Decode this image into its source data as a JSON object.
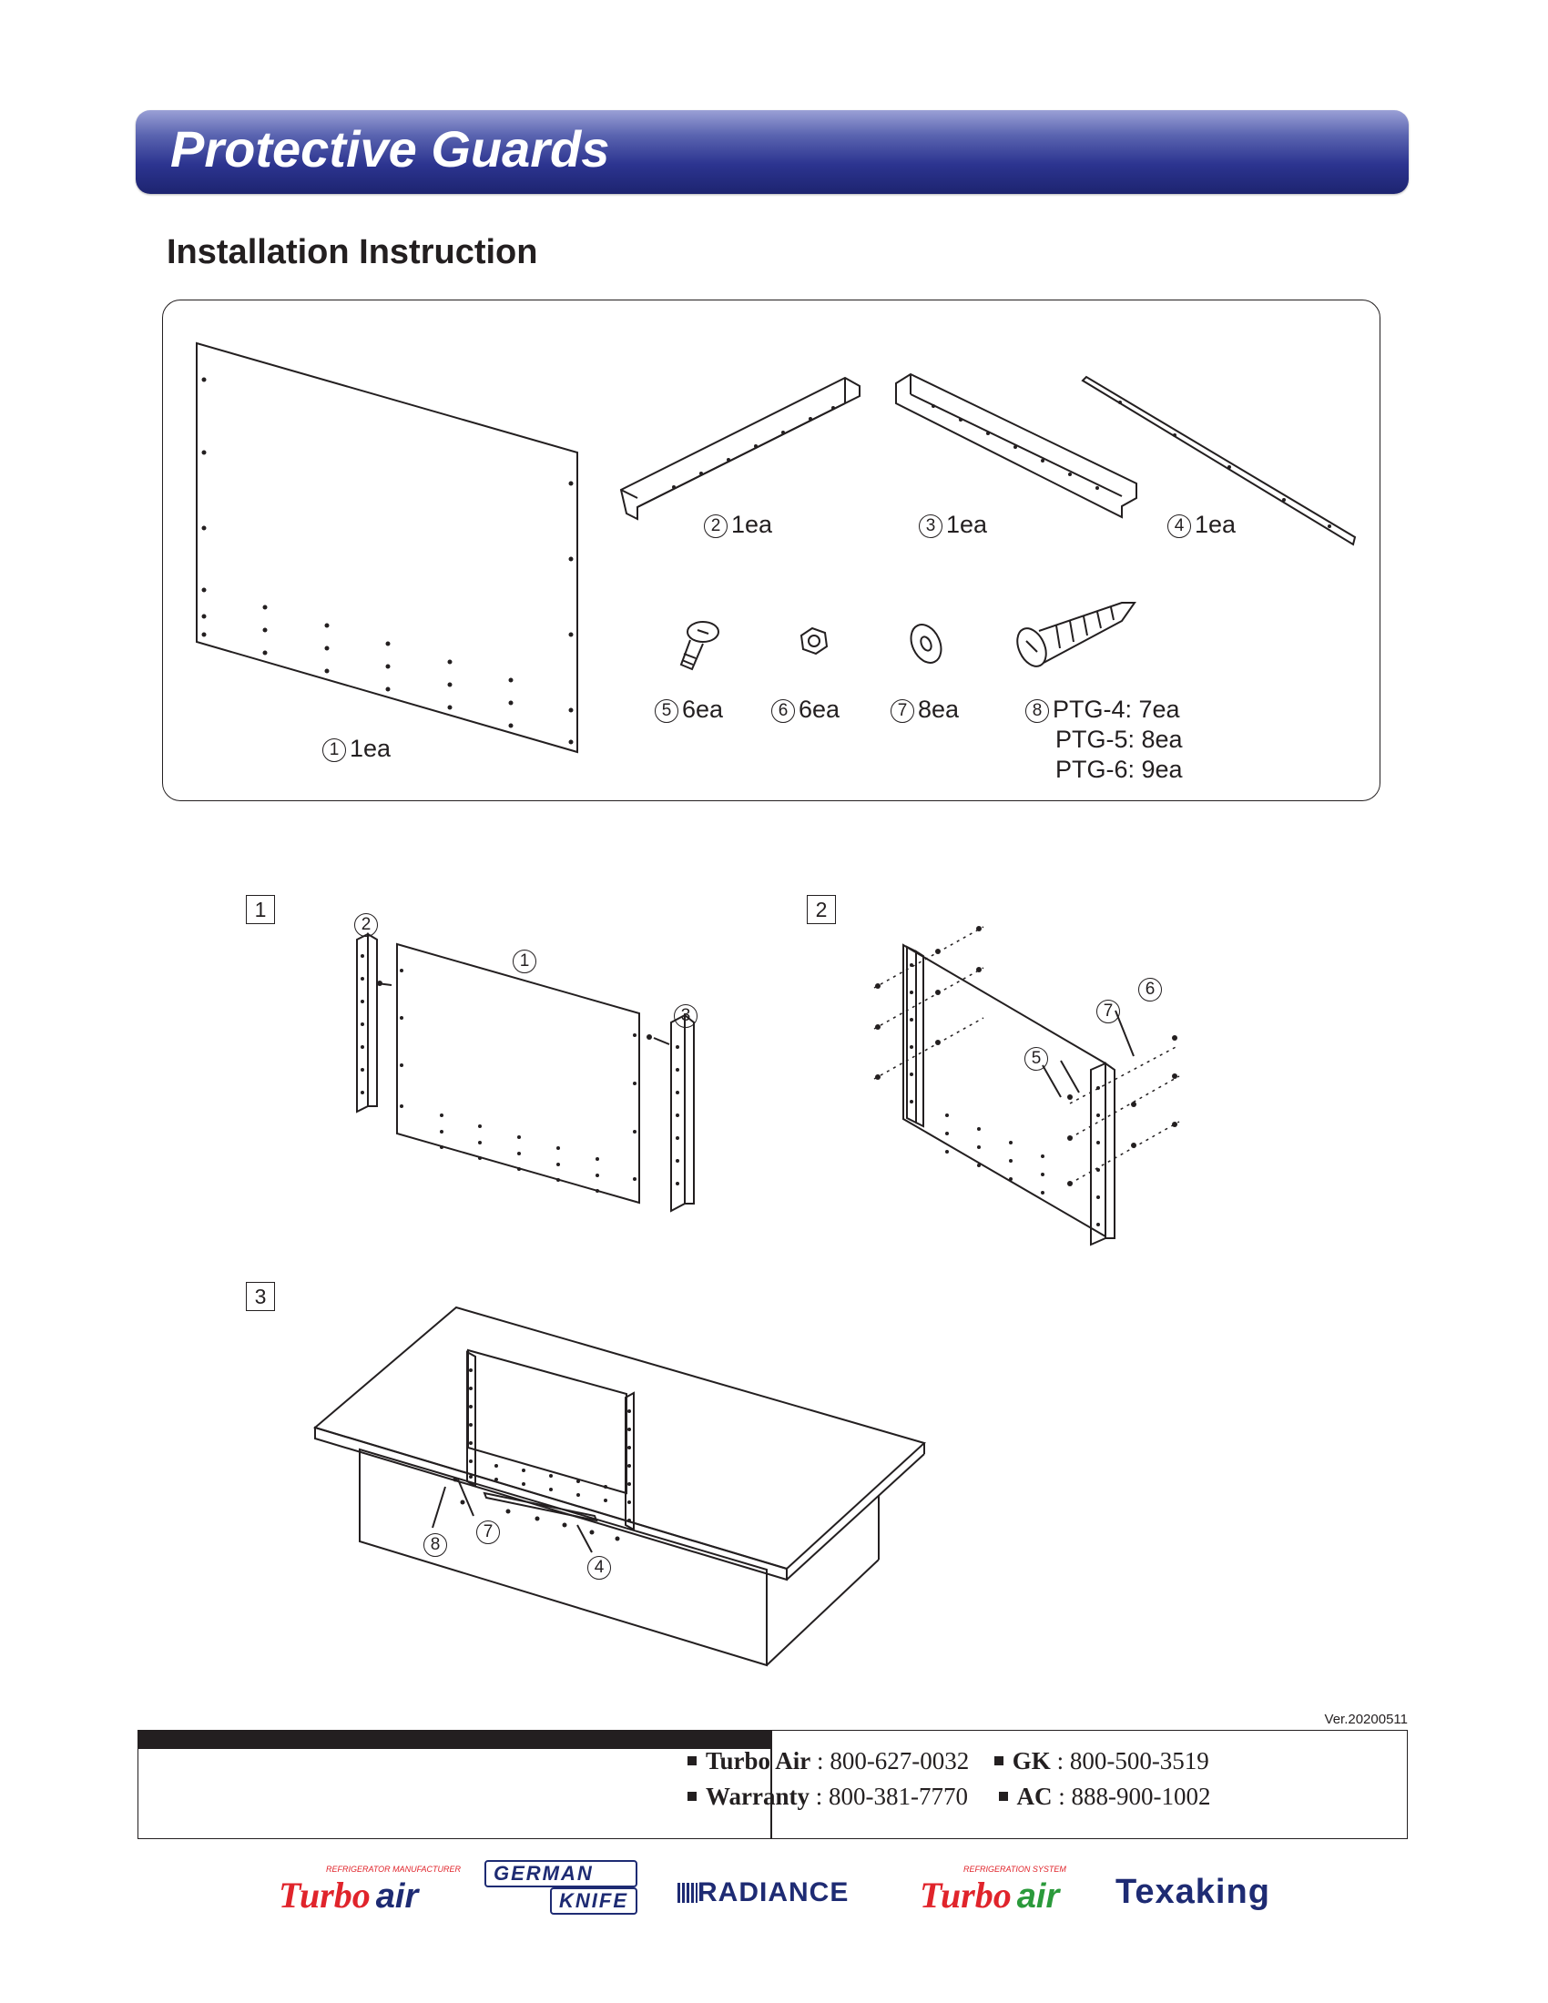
{
  "header": {
    "title": "Protective Guards"
  },
  "subtitle": "Installation Instruction",
  "parts": [
    {
      "num": "1",
      "qty": "1ea"
    },
    {
      "num": "2",
      "qty": "1ea"
    },
    {
      "num": "3",
      "qty": "1ea"
    },
    {
      "num": "4",
      "qty": "1ea"
    },
    {
      "num": "5",
      "qty": "6ea"
    },
    {
      "num": "6",
      "qty": "6ea"
    },
    {
      "num": "7",
      "qty": "8ea"
    },
    {
      "num": "8",
      "qty": [
        "PTG-4: 7ea",
        "PTG-5: 8ea",
        "PTG-6: 9ea"
      ]
    }
  ],
  "steps": {
    "s1": {
      "num": "1",
      "callouts": [
        "2",
        "1",
        "3"
      ]
    },
    "s2": {
      "num": "2",
      "callouts": [
        "6",
        "7",
        "5"
      ]
    },
    "s3": {
      "num": "3",
      "callouts": [
        "7",
        "8",
        "4"
      ]
    }
  },
  "version": "Ver.20200511",
  "contacts": {
    "row1": [
      {
        "name": "Turbo Air",
        "phone": "800-627-0032"
      },
      {
        "name": "GK",
        "phone": "800-500-3519"
      }
    ],
    "row2": [
      {
        "name": "Warranty",
        "phone": "800-381-7770"
      },
      {
        "name": "AC",
        "phone": "888-900-1002"
      }
    ]
  },
  "logos": {
    "turbo_air": {
      "tag": "REFRIGERATOR MANUFACTURER",
      "word1": "Turbo",
      "word2": "air"
    },
    "german_knife": {
      "line1": "GERMAN",
      "line2": "KNIFE"
    },
    "radiance": "RADIANCE",
    "turbo_air_ref": {
      "tag": "REFRIGERATION SYSTEM",
      "word1": "Turbo",
      "word2": "air"
    },
    "texaking": "Texaking"
  },
  "colors": {
    "banner": "#2c3490",
    "ink": "#231f20",
    "turbo_red": "#e0242b",
    "navy": "#1e2b73"
  }
}
